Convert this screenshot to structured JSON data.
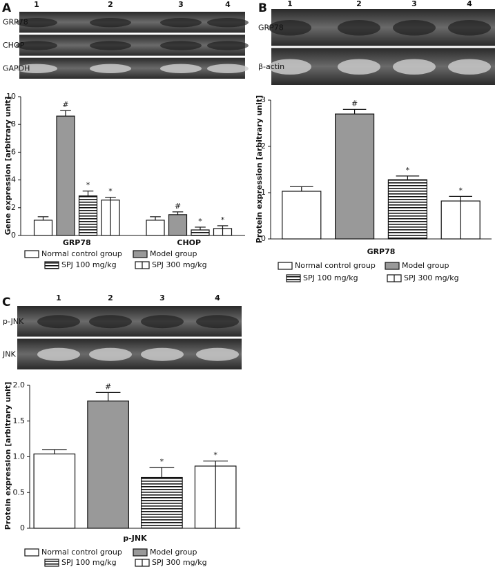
{
  "chart_data": [
    {
      "type": "bar",
      "panel": "A",
      "blot": {
        "lanes": [
          "1",
          "2",
          "3",
          "4"
        ],
        "rows": [
          "GRP78",
          "CHOP",
          "GAPDH"
        ]
      },
      "y_label": "Gene expression [arbitrary unit]",
      "categories": [
        "GRP78",
        "CHOP"
      ],
      "series": [
        {
          "name": "Normal control group",
          "color": "#ffffff",
          "values": [
            1.1,
            1.1
          ],
          "errors": [
            0.25,
            0.25
          ],
          "annotations": [
            null,
            null
          ]
        },
        {
          "name": "Model group",
          "color": "#999999",
          "values": [
            8.6,
            1.5
          ],
          "errors": [
            0.4,
            0.2
          ],
          "annotations": [
            "#",
            "#"
          ]
        },
        {
          "name": "SPJ 100 mg/kg",
          "color": "#ffffff",
          "pattern": "horizontal-stripes",
          "values": [
            2.85,
            0.4
          ],
          "errors": [
            0.35,
            0.2
          ],
          "annotations": [
            "*",
            "*"
          ]
        },
        {
          "name": "SPJ 300 mg/kg",
          "color": "#ffffff",
          "pattern": "vertical-line",
          "values": [
            2.55,
            0.5
          ],
          "errors": [
            0.2,
            0.2
          ],
          "annotations": [
            "*",
            "*"
          ]
        }
      ],
      "ylim": [
        0,
        10
      ],
      "yticks": [
        0,
        2,
        4,
        6,
        8,
        10
      ]
    },
    {
      "type": "bar",
      "panel": "B",
      "blot": {
        "lanes": [
          "1",
          "2",
          "3",
          "4"
        ],
        "rows": [
          "GRP78",
          "β-actin"
        ]
      },
      "y_label": "Protein expression [arbitrary unit]",
      "categories": [
        "GRP78"
      ],
      "series": [
        {
          "name": "Normal control group",
          "color": "#ffffff",
          "values": [
            1.03
          ],
          "errors": [
            0.1
          ],
          "annotations": [
            null
          ]
        },
        {
          "name": "Model group",
          "color": "#999999",
          "values": [
            2.7
          ],
          "errors": [
            0.1
          ],
          "annotations": [
            "#"
          ]
        },
        {
          "name": "SPJ 100 mg/kg",
          "color": "#ffffff",
          "pattern": "horizontal-stripes",
          "values": [
            1.28
          ],
          "errors": [
            0.08
          ],
          "annotations": [
            "*"
          ]
        },
        {
          "name": "SPJ 300 mg/kg",
          "color": "#ffffff",
          "pattern": "vertical-line",
          "values": [
            0.82
          ],
          "errors": [
            0.1
          ],
          "annotations": [
            "*"
          ]
        }
      ],
      "ylim": [
        0,
        3
      ],
      "yticks": [
        0,
        1,
        2,
        3
      ]
    },
    {
      "type": "bar",
      "panel": "C",
      "blot": {
        "lanes": [
          "1",
          "2",
          "3",
          "4"
        ],
        "rows": [
          "p-JNK",
          "JNK"
        ]
      },
      "y_label": "Protein expression [arbitrary unit]",
      "categories": [
        "p-JNK"
      ],
      "series": [
        {
          "name": "Normal control group",
          "color": "#ffffff",
          "values": [
            1.04
          ],
          "errors": [
            0.06
          ],
          "annotations": [
            null
          ]
        },
        {
          "name": "Model group",
          "color": "#999999",
          "values": [
            1.78
          ],
          "errors": [
            0.12
          ],
          "annotations": [
            "#"
          ]
        },
        {
          "name": "SPJ 100 mg/kg",
          "color": "#ffffff",
          "pattern": "horizontal-stripes",
          "values": [
            0.71
          ],
          "errors": [
            0.14
          ],
          "annotations": [
            "*"
          ]
        },
        {
          "name": "SPJ 300 mg/kg",
          "color": "#ffffff",
          "pattern": "vertical-line",
          "values": [
            0.87
          ],
          "errors": [
            0.07
          ],
          "annotations": [
            "*"
          ]
        }
      ],
      "ylim": [
        0,
        2
      ],
      "yticks": [
        0,
        0.5,
        {
          "value": 1,
          "label": "1.0"
        },
        1.5,
        {
          "value": 2,
          "label": "2.0"
        }
      ]
    }
  ]
}
